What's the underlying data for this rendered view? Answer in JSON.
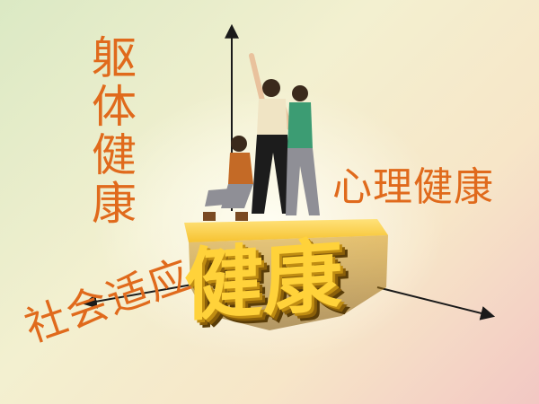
{
  "labels": {
    "vertical_axis": "躯体健康",
    "right_axis": "心理健康",
    "bottom_axis": "社会适应",
    "center_block": "健康"
  },
  "colors": {
    "label": "#e06a1c",
    "axis": "#1a1a1a",
    "block_face": "#ffd23a",
    "block_side": "#a8740c"
  },
  "figures": [
    "woman-kneeling-figure",
    "man-arm-raised-figure",
    "woman-standing-figure"
  ]
}
